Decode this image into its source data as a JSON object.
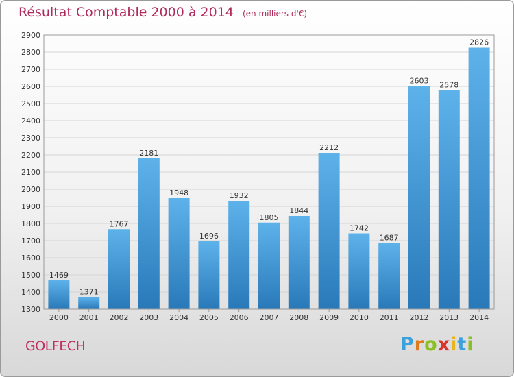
{
  "header": {
    "title": "Résultat Comptable 2000 à 2014",
    "subtitle": "(en milliers d'€)"
  },
  "footer": {
    "city": "GOLFECH",
    "brand": "Proxiti"
  },
  "chart_data": {
    "type": "bar",
    "title": "Résultat Comptable 2000 à 2014",
    "subtitle": "(en milliers d'€)",
    "xlabel": "",
    "ylabel": "",
    "categories": [
      "2000",
      "2001",
      "2002",
      "2003",
      "2004",
      "2005",
      "2006",
      "2007",
      "2008",
      "2009",
      "2010",
      "2011",
      "2012",
      "2013",
      "2014"
    ],
    "values": [
      1469,
      1371,
      1767,
      2181,
      1948,
      1696,
      1932,
      1805,
      1844,
      2212,
      1742,
      1687,
      2603,
      2578,
      2826
    ],
    "ylim": [
      1300,
      2900
    ],
    "yticks": [
      1300,
      1400,
      1500,
      1600,
      1700,
      1800,
      1900,
      2000,
      2100,
      2200,
      2300,
      2400,
      2500,
      2600,
      2700,
      2800,
      2900
    ],
    "grid": true,
    "legend": "none",
    "colors": {
      "bar_light": "#5eb2ea",
      "bar_dark": "#2979b9",
      "grid": "#d4d4d4",
      "text": "#333333"
    }
  }
}
